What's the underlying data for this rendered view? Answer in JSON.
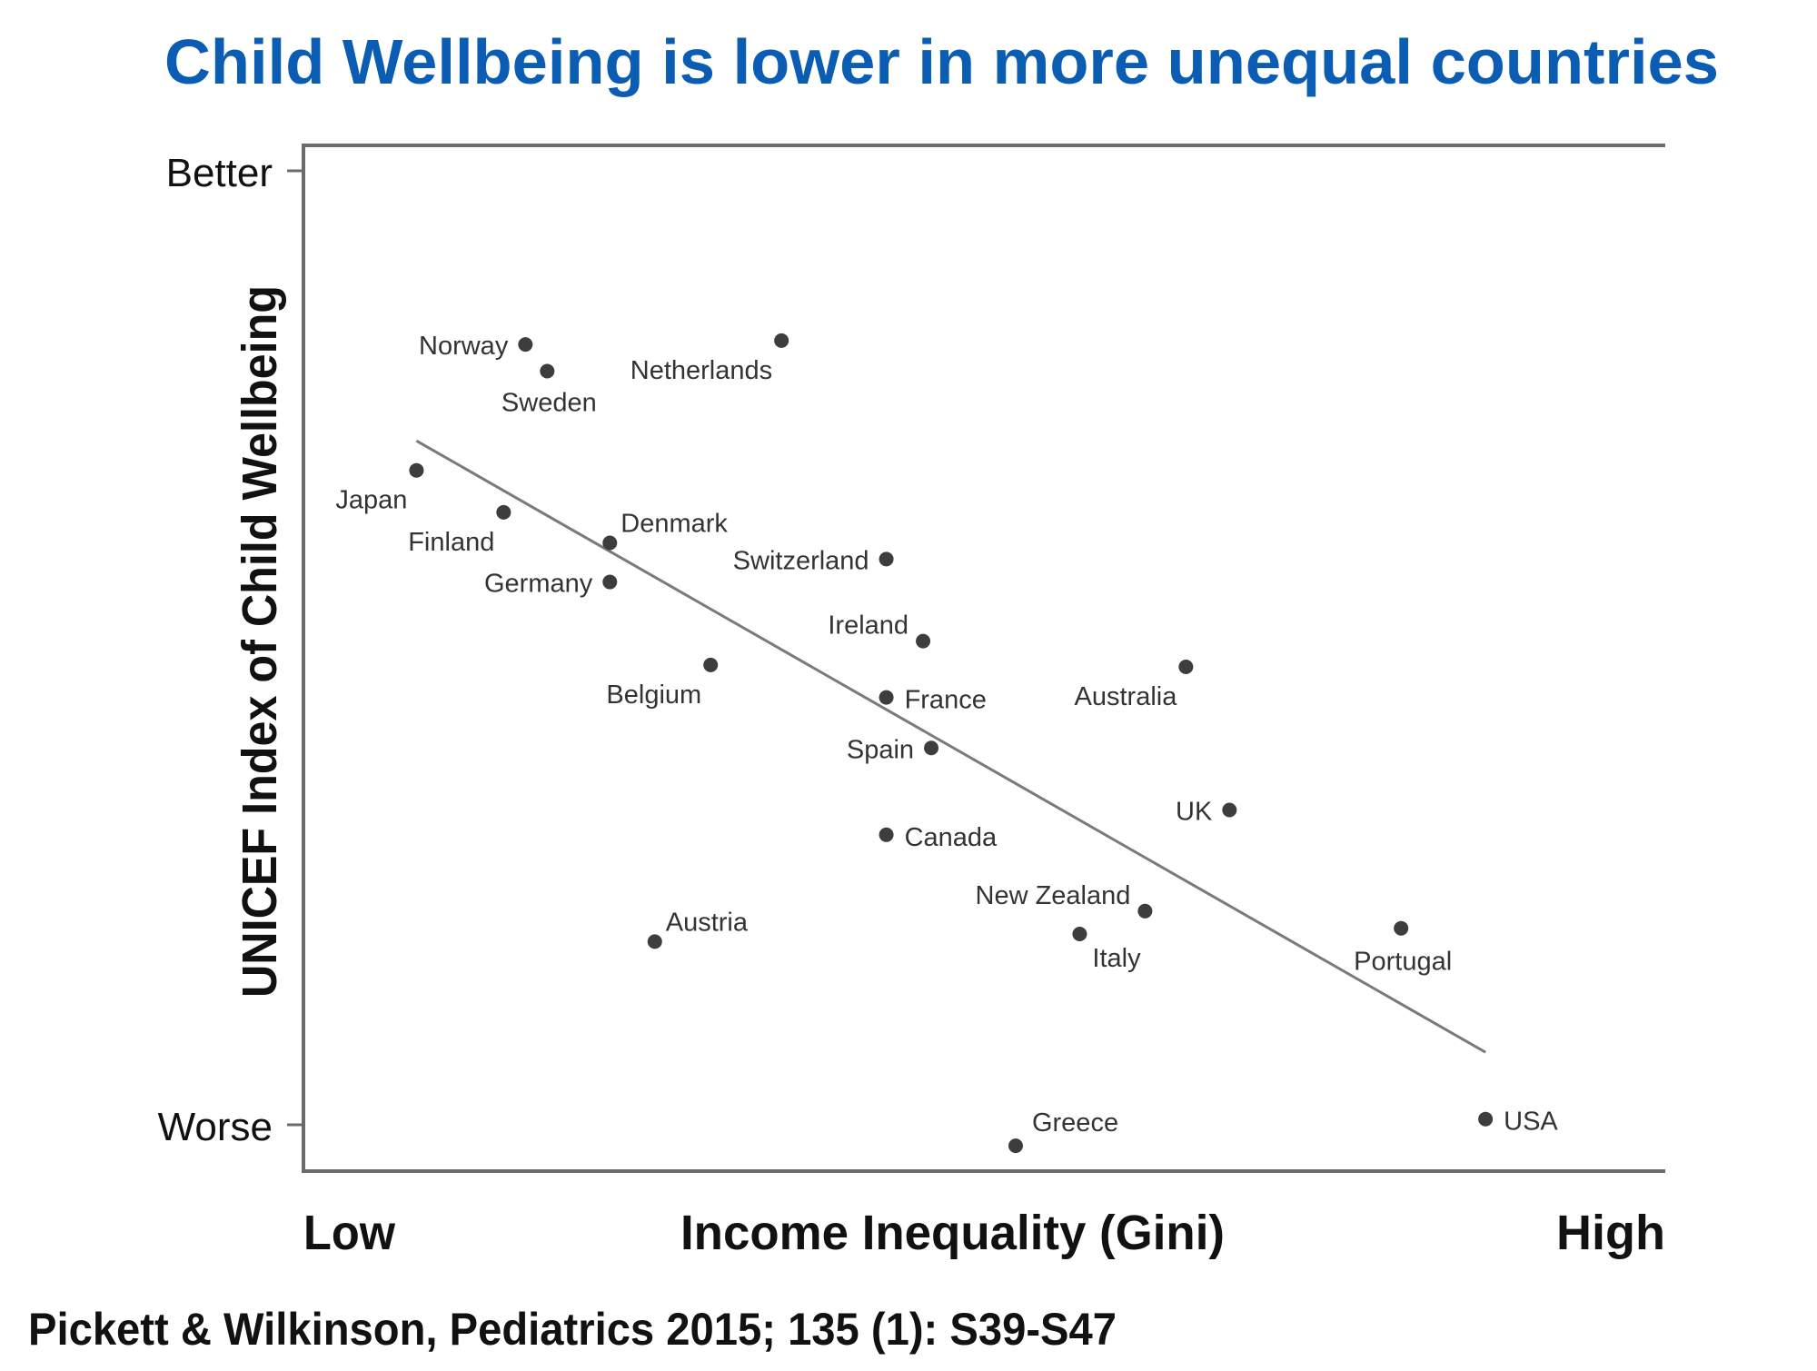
{
  "chart_data": {
    "type": "scatter",
    "title": "Child Wellbeing is lower in more unequal countries",
    "title_color": "#0b5cb3",
    "xlabel": "Income Inequality (Gini)",
    "ylabel": "UNICEF Index of Child Wellbeing",
    "x_tick_labels": {
      "low": "Low",
      "high": "High"
    },
    "y_tick_labels": {
      "better": "Better",
      "worse": "Worse"
    },
    "x_range": [
      0,
      100
    ],
    "y_range": [
      0,
      100
    ],
    "x_scale_note": "relative (Low to High)",
    "y_scale_note": "relative (Worse to Better)",
    "grid": false,
    "legend": "none",
    "point_color": "#3d3d3d",
    "trendline_color": "#7a7a7a",
    "axis_color": "#6b6b6b",
    "points": [
      {
        "label": "Norway",
        "x": 16.3,
        "y": 81.8,
        "label_side": "left"
      },
      {
        "label": "Sweden",
        "x": 17.9,
        "y": 79.0,
        "label_side": "below"
      },
      {
        "label": "Netherlands",
        "x": 35.1,
        "y": 82.2,
        "label_side": "below-left"
      },
      {
        "label": "Japan",
        "x": 8.3,
        "y": 68.6,
        "label_side": "below-left"
      },
      {
        "label": "Finland",
        "x": 14.7,
        "y": 64.2,
        "label_side": "below-left"
      },
      {
        "label": "Denmark",
        "x": 22.5,
        "y": 61.0,
        "label_side": "above-right"
      },
      {
        "label": "Germany",
        "x": 22.5,
        "y": 56.9,
        "label_side": "left"
      },
      {
        "label": "Switzerland",
        "x": 42.8,
        "y": 59.3,
        "label_side": "left"
      },
      {
        "label": "Ireland",
        "x": 45.5,
        "y": 50.7,
        "label_side": "above-left"
      },
      {
        "label": "Belgium",
        "x": 29.9,
        "y": 48.2,
        "label_side": "below-left"
      },
      {
        "label": "France",
        "x": 42.8,
        "y": 44.8,
        "label_side": "right"
      },
      {
        "label": "Australia",
        "x": 64.8,
        "y": 48.0,
        "label_side": "below-left"
      },
      {
        "label": "Spain",
        "x": 46.1,
        "y": 39.5,
        "label_side": "left"
      },
      {
        "label": "UK",
        "x": 68.0,
        "y": 33.0,
        "label_side": "left"
      },
      {
        "label": "Canada",
        "x": 42.8,
        "y": 30.4,
        "label_side": "right"
      },
      {
        "label": "New Zealand",
        "x": 61.8,
        "y": 22.4,
        "label_side": "above-left"
      },
      {
        "label": "Italy",
        "x": 57.0,
        "y": 20.0,
        "label_side": "below-right"
      },
      {
        "label": "Austria",
        "x": 25.8,
        "y": 19.2,
        "label_side": "above-right"
      },
      {
        "label": "Portugal",
        "x": 80.6,
        "y": 20.6,
        "label_side": "below"
      },
      {
        "label": "Greece",
        "x": 52.3,
        "y": -2.2,
        "label_side": "above-right"
      },
      {
        "label": "USA",
        "x": 86.8,
        "y": 0.6,
        "label_side": "right"
      }
    ],
    "trendline": {
      "x": [
        8.3,
        86.8
      ],
      "y": [
        71.7,
        7.6
      ]
    }
  },
  "footer": {
    "citation": "Pickett & Wilkinson, Pediatrics 2015; 135 (1): S39-S47"
  }
}
